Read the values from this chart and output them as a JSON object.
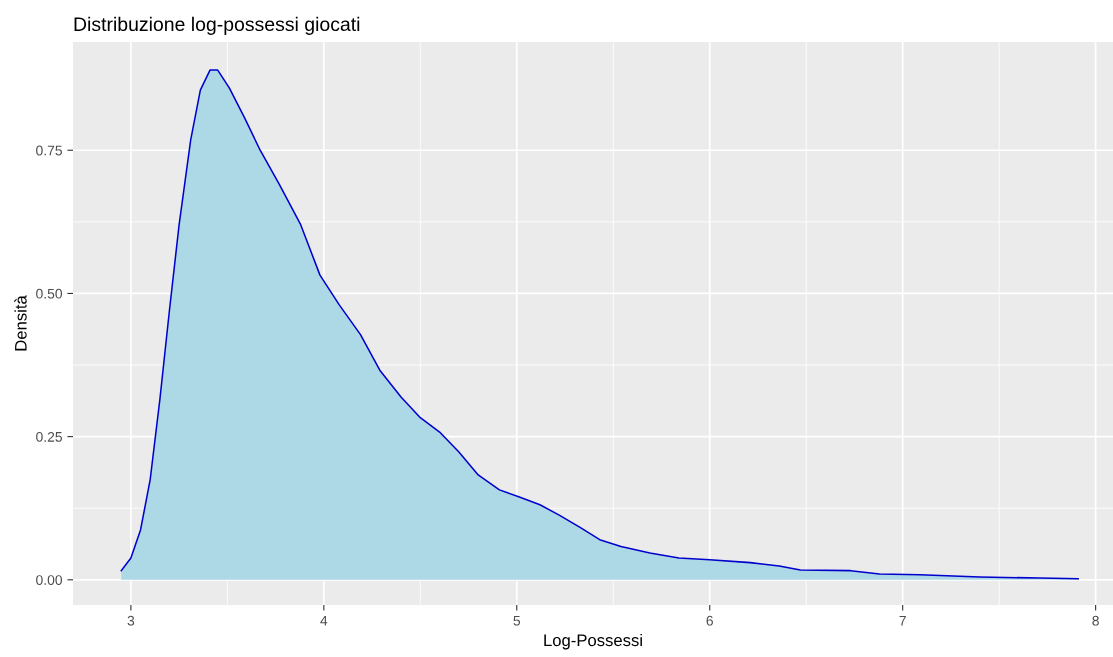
{
  "chart_data": {
    "type": "area",
    "title": "Distribuzione log-possessi giocati",
    "xlabel": "Log-Possessi",
    "ylabel": "Densità",
    "x": [
      2.95,
      3.0,
      3.05,
      3.1,
      3.15,
      3.2,
      3.25,
      3.31,
      3.36,
      3.41,
      3.45,
      3.51,
      3.59,
      3.67,
      3.77,
      3.88,
      3.98,
      4.08,
      4.19,
      4.29,
      4.4,
      4.5,
      4.6,
      4.7,
      4.8,
      4.91,
      5.01,
      5.12,
      5.22,
      5.33,
      5.43,
      5.54,
      5.69,
      5.84,
      6.0,
      6.21,
      6.36,
      6.47,
      6.73,
      6.88,
      7.09,
      7.4,
      7.71,
      7.91
    ],
    "series": [
      {
        "color": "#0000cd",
        "values": [
          0.016,
          0.038,
          0.087,
          0.175,
          0.314,
          0.471,
          0.62,
          0.768,
          0.855,
          0.89,
          0.89,
          0.859,
          0.806,
          0.75,
          0.69,
          0.62,
          0.532,
          0.48,
          0.428,
          0.366,
          0.319,
          0.283,
          0.258,
          0.223,
          0.183,
          0.157,
          0.145,
          0.131,
          0.113,
          0.091,
          0.07,
          0.058,
          0.047,
          0.038,
          0.035,
          0.03,
          0.024,
          0.017,
          0.016,
          0.01,
          0.009,
          0.005,
          0.003,
          0.002
        ]
      }
    ],
    "xlim": [
      2.7,
      8.09
    ],
    "ylim": [
      -0.044,
      0.939
    ],
    "xticks": [
      3,
      4,
      5,
      6,
      7,
      8
    ],
    "yticks": [
      {
        "value": 0,
        "label": "0.00"
      },
      {
        "value": 0.25,
        "label": "0.25"
      },
      {
        "value": 0.5,
        "label": "0.50"
      },
      {
        "value": 0.75,
        "label": "0.75"
      }
    ],
    "grid": true,
    "legend": false
  }
}
